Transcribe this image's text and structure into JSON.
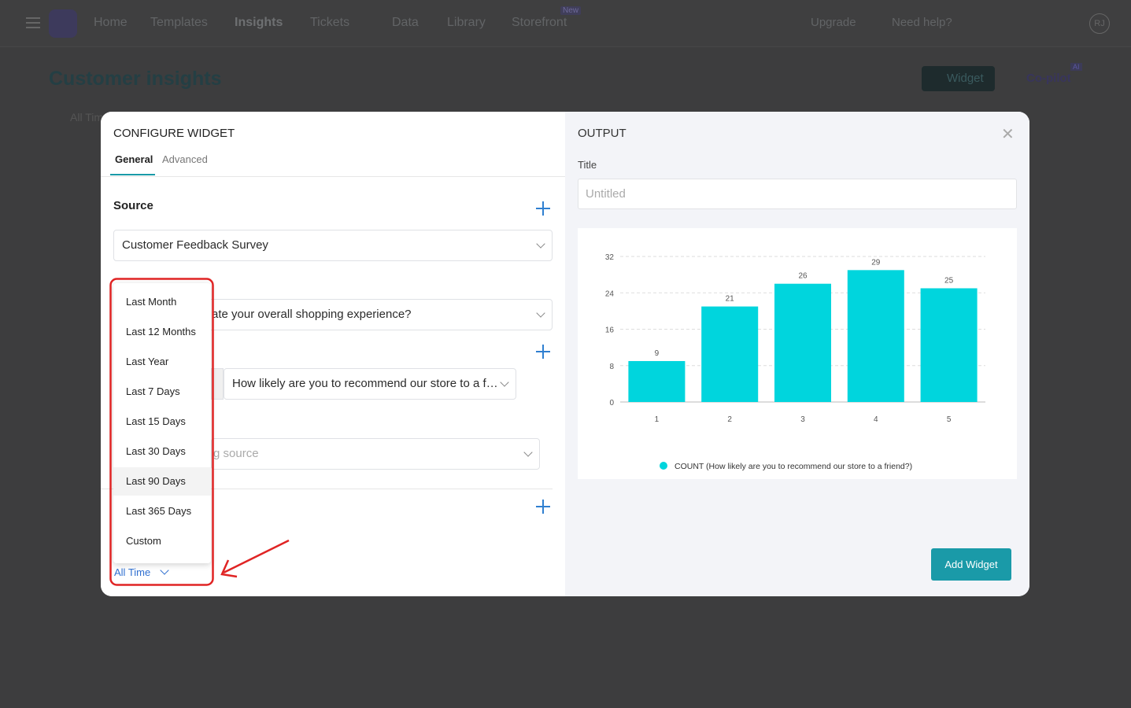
{
  "nav": {
    "items": [
      "Home",
      "Templates",
      "Insights",
      "Tickets",
      "Data",
      "Library",
      "Storefront"
    ],
    "new_badge": "New",
    "upgrade": "Upgrade",
    "help": "Need help?",
    "avatar": "RJ"
  },
  "page": {
    "title": "Customer insights",
    "widget_button": "Widget",
    "copilot": "Co-pilot",
    "ai_badge": "AI",
    "filter": "All Time"
  },
  "configure": {
    "title": "CONFIGURE WIDGET",
    "tabs": [
      "General",
      "Advanced"
    ],
    "source_label": "Source",
    "source_value": "Customer Feedback Survey",
    "x_axis_value": "ate your overall shopping experience?",
    "y_axis_value": "How likely are you to recommend our store to a f…",
    "sort_placeholder": "g source",
    "date_filter": "All Time",
    "date_options": [
      "Last Month",
      "Last 12 Months",
      "Last Year",
      "Last 7 Days",
      "Last 15 Days",
      "Last 30 Days",
      "Last 90 Days",
      "Last 365 Days",
      "Custom"
    ]
  },
  "output": {
    "title": "OUTPUT",
    "title_label": "Title",
    "title_placeholder": "Untitled",
    "add_button": "Add Widget",
    "chart": {
      "type": "bar",
      "categories": [
        "1",
        "2",
        "3",
        "4",
        "5"
      ],
      "series": [
        {
          "name": "COUNT (How likely are you to recommend our store to a friend?)",
          "color": "#00d5dd",
          "values": [
            9,
            21,
            26,
            29,
            25
          ]
        }
      ],
      "ylim": [
        0,
        32
      ],
      "yticks": [
        0,
        8,
        16,
        24,
        32
      ],
      "grid": true
    }
  }
}
